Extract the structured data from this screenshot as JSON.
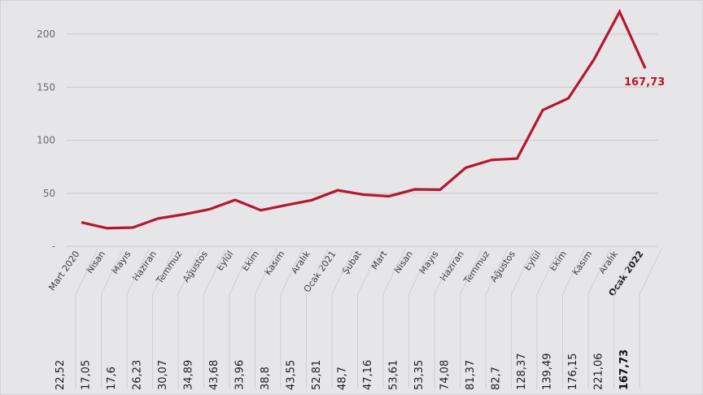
{
  "chart_data": {
    "type": "line",
    "title": "",
    "xlabel": "",
    "ylabel": "",
    "ylim": [
      0,
      220
    ],
    "yticks": [
      {
        "value": 0,
        "label": "-"
      },
      {
        "value": 50,
        "label": "50"
      },
      {
        "value": 100,
        "label": "100"
      },
      {
        "value": 150,
        "label": "150"
      },
      {
        "value": 200,
        "label": "200"
      }
    ],
    "grid": true,
    "line_color": "#b5172e",
    "categories": [
      "Mart 2020",
      "Nisan",
      "Mayıs",
      "Haziran",
      "Temmuz",
      "Ağustos",
      "Eylül",
      "Ekim",
      "Kasım",
      "Aralık",
      "Ocak 2021",
      "Şubat",
      "Mart",
      "Nisan",
      "Mayıs",
      "Haziran",
      "Temmuz",
      "Ağustos",
      "Eylül",
      "Ekim",
      "Kasım",
      "Aralık",
      "Ocak 2022"
    ],
    "values": [
      22.52,
      17.05,
      17.6,
      26.23,
      30.07,
      34.89,
      43.68,
      33.96,
      38.8,
      43.55,
      52.81,
      48.7,
      47.16,
      53.61,
      53.35,
      74.08,
      81.37,
      82.7,
      128.37,
      139.49,
      176.15,
      221.06,
      167.73
    ],
    "value_labels": [
      "22,52",
      "17,05",
      "17,6",
      "26,23",
      "30,07",
      "34,89",
      "43,68",
      "33,96",
      "38,8",
      "43,55",
      "52,81",
      "48,7",
      "47,16",
      "53,61",
      "53,35",
      "74,08",
      "81,37",
      "82,7",
      "128,37",
      "139,49",
      "176,15",
      "221,06",
      "167,73"
    ],
    "highlight_index": 22,
    "end_label": "167,73"
  }
}
